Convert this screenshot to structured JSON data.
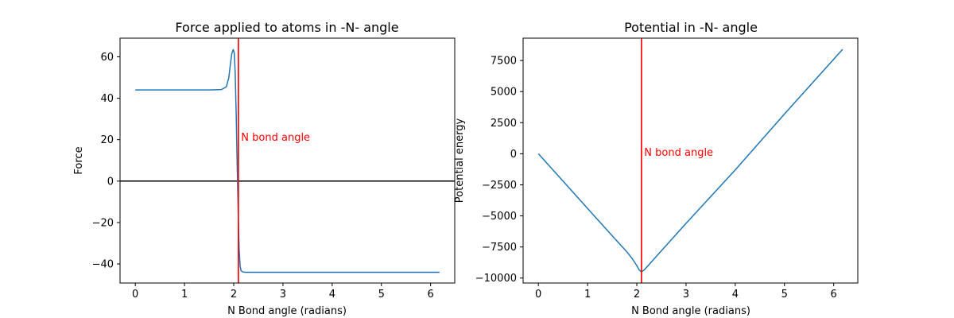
{
  "chart_data": [
    {
      "type": "line",
      "title": "Force applied to atoms in -N- angle",
      "xlabel": "N Bond angle (radians)",
      "ylabel": "Force",
      "xlim": [
        -0.31,
        6.49
      ],
      "ylim": [
        -49.2,
        69.0
      ],
      "xticks": [
        0,
        1,
        2,
        3,
        4,
        5,
        6
      ],
      "yticks": [
        -40,
        -20,
        0,
        20,
        40,
        60
      ],
      "ytick_labels": [
        "−40",
        "−20",
        "0",
        "20",
        "40",
        "60"
      ],
      "grid": false,
      "legend": "none",
      "series": [
        {
          "color": "#1f77b4",
          "x": [
            0,
            0.5,
            1.0,
            1.5,
            1.75,
            1.85,
            1.9,
            1.93,
            1.96,
            1.99,
            2.01,
            2.03,
            2.05,
            2.07,
            2.09,
            2.11,
            2.13,
            2.15,
            2.18,
            2.22,
            2.3,
            3.0,
            4.0,
            5.0,
            6.18
          ],
          "y": [
            44,
            44,
            44,
            44,
            44.2,
            45.5,
            50,
            56,
            61.5,
            63.5,
            62,
            52,
            32,
            8,
            -15,
            -33,
            -41,
            -43.3,
            -43.8,
            -44,
            -44,
            -44,
            -44,
            -44,
            -44
          ]
        }
      ],
      "reference_lines": [
        {
          "orientation": "vertical",
          "value": 2.0944,
          "color": "#ff0000"
        },
        {
          "orientation": "horizontal",
          "value": 0,
          "color": "#000000"
        }
      ],
      "annotation": {
        "text": "N bond angle",
        "x": 2.15,
        "y": 21,
        "color": "#ff0000"
      }
    },
    {
      "type": "line",
      "title": "Potential in -N- angle",
      "xlabel": "N Bond angle (radians)",
      "ylabel": "Potential energy",
      "xlim": [
        -0.31,
        6.49
      ],
      "ylim": [
        -10400,
        9300
      ],
      "xticks": [
        0,
        1,
        2,
        3,
        4,
        5,
        6
      ],
      "yticks": [
        -10000,
        -7500,
        -5000,
        -2500,
        0,
        2500,
        5000,
        7500
      ],
      "ytick_labels": [
        "−10000",
        "−7500",
        "−5000",
        "−2500",
        "0",
        "2500",
        "5000",
        "7500"
      ],
      "grid": false,
      "legend": "none",
      "series": [
        {
          "color": "#1f77b4",
          "x": [
            0,
            0.5,
            1.0,
            1.5,
            1.8,
            1.9,
            2.0,
            2.05,
            2.09,
            2.15,
            2.5,
            3.0,
            4.0,
            5.0,
            6.18
          ],
          "y": [
            0,
            -2200,
            -4400,
            -6600,
            -7900,
            -8400,
            -9000,
            -9350,
            -9500,
            -9350,
            -7800,
            -5600,
            -1300,
            3200,
            8400
          ]
        }
      ],
      "reference_lines": [
        {
          "orientation": "vertical",
          "value": 2.0944,
          "color": "#ff0000"
        }
      ],
      "annotation": {
        "text": "N bond angle",
        "x": 2.15,
        "y": 100,
        "color": "#ff0000"
      }
    }
  ]
}
